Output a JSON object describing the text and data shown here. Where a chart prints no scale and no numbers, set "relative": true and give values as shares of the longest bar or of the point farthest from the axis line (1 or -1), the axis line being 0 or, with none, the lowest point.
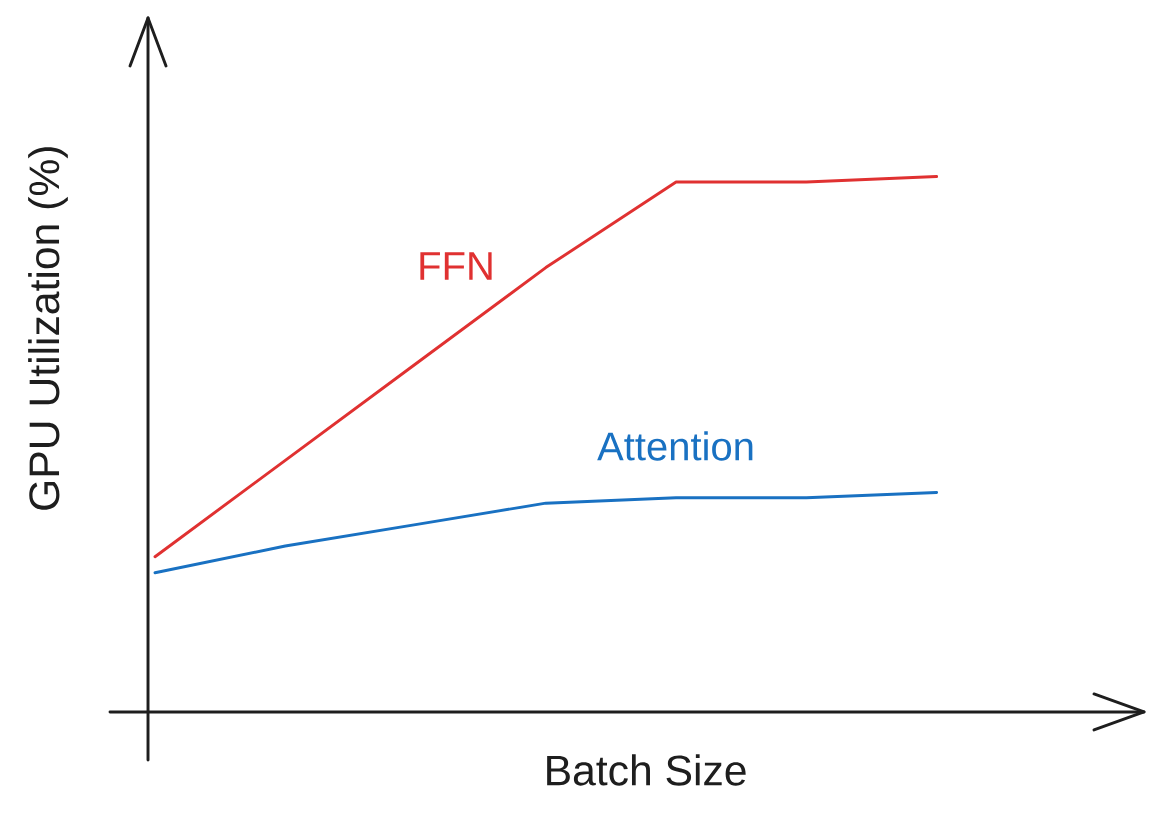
{
  "chart_data": {
    "type": "line",
    "xlabel": "Batch Size",
    "ylabel": "GPU Utilization (%)",
    "categories": [
      null,
      null,
      null,
      null,
      null,
      null,
      null
    ],
    "relative": true,
    "marker": "none",
    "line_style": "solid",
    "series": [
      {
        "name": "FFN",
        "color": "#e03131",
        "values": [
          0.29,
          0.47,
          0.65,
          0.83,
          0.99,
          0.99,
          1
        ]
      },
      {
        "name": "Attention",
        "color": "#1971c2",
        "values": [
          0.26,
          0.31,
          0.35,
          0.39,
          0.4,
          0.4,
          0.41
        ]
      }
    ]
  }
}
